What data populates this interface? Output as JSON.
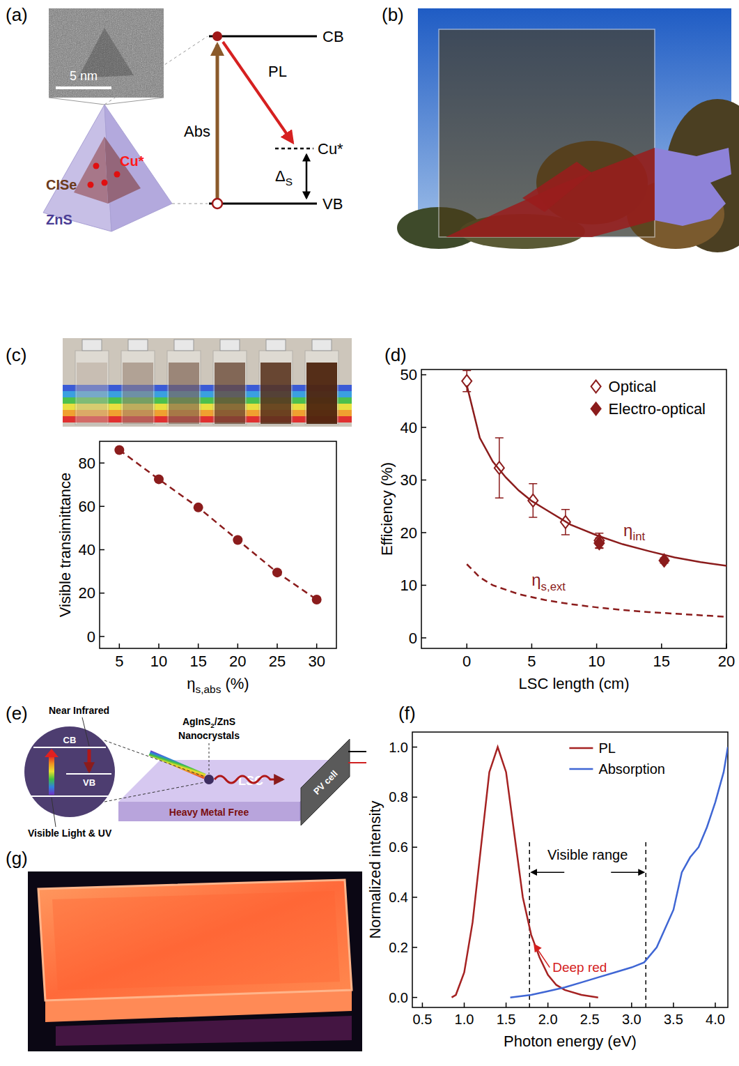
{
  "panel_labels": {
    "a": "(a)",
    "b": "(b)",
    "c": "(c)",
    "d": "(d)",
    "e": "(e)",
    "f": "(f)",
    "g": "(g)"
  },
  "diagram_a": {
    "scale_bar": "5 nm",
    "labels": {
      "core": "CISe",
      "dopant": "Cu*",
      "shell": "ZnS"
    },
    "levels": {
      "cb": "CB",
      "vb": "VB",
      "dopant": "Cu*"
    },
    "transitions": {
      "absorption": "Abs",
      "emission": "PL",
      "stokes_shift": [
        "Δ",
        "S"
      ]
    }
  },
  "diagram_e": {
    "levels": {
      "cb": "CB",
      "vb": "VB"
    },
    "emission": "Near Infrared",
    "excitation": "Visible Light & UV",
    "particle": {
      "line1": [
        "AgInS",
        "2",
        "/ZnS"
      ],
      "line2": "Nanocrystals"
    },
    "device": "LSC",
    "cell": "PV cell",
    "feature": "Heavy Metal Free"
  },
  "chart_data": [
    {
      "type": "scatter",
      "xlabel": [
        "η",
        "s,abs",
        " (%)"
      ],
      "ylabel": "Visible transimittance",
      "xlim": [
        2.5,
        32.5
      ],
      "ylim": [
        -5.5,
        90
      ],
      "xticks": [
        5,
        10,
        15,
        20,
        25,
        30
      ],
      "yticks": [
        0,
        20,
        40,
        60,
        80
      ],
      "series": [
        {
          "color": "#8b1c1c",
          "marker": "circle",
          "line_style": "dashed",
          "x": [
            5,
            10,
            15,
            20,
            25,
            30
          ],
          "values": [
            86,
            72.5,
            59.5,
            44.5,
            29.5,
            17
          ]
        }
      ]
    },
    {
      "type": "line",
      "xlabel": "LSC length (cm)",
      "ylabel": "Efficiency (%)",
      "xlim": [
        -3.5,
        20
      ],
      "ylim": [
        -2,
        51
      ],
      "xticks": [
        0,
        5,
        10,
        15,
        20
      ],
      "yticks": [
        0,
        10,
        20,
        30,
        40,
        50
      ],
      "legend": "upper right",
      "series": [
        {
          "name": "Optical",
          "type": "scatter",
          "marker": "diamond-open",
          "color": "#8b1c1c",
          "x": [
            0,
            2.5,
            5.1,
            7.6,
            10.2
          ],
          "values": [
            48.8,
            32.3,
            26.1,
            22,
            18.5
          ],
          "errors": [
            2,
            5.7,
            3.2,
            2.4,
            1.4
          ]
        },
        {
          "name": "Electro-optical",
          "type": "scatter",
          "marker": "diamond",
          "color": "#8b1c1c",
          "x": [
            10.2,
            15.2
          ],
          "values": [
            18,
            14.7
          ],
          "errors": [
            1,
            0.5
          ]
        },
        {
          "type": "line",
          "line_style": "solid",
          "color": "#8b1c1c",
          "x": [
            0,
            1,
            2,
            3,
            4,
            5,
            6,
            8,
            10,
            12,
            14,
            16,
            18,
            20
          ],
          "values": [
            48,
            38,
            33.5,
            30.5,
            28,
            26,
            24.5,
            21.5,
            19.5,
            17.8,
            16.5,
            15.3,
            14.4,
            13.7
          ]
        },
        {
          "type": "line",
          "line_style": "dashed",
          "color": "#8b1c1c",
          "x": [
            0,
            1,
            2,
            4,
            6,
            8,
            10,
            12,
            14,
            16,
            18,
            20
          ],
          "values": [
            14,
            11.5,
            10,
            8.3,
            7.2,
            6.4,
            5.8,
            5.3,
            4.9,
            4.6,
            4.3,
            4
          ]
        }
      ],
      "annotations": [
        {
          "text": [
            "η",
            "int"
          ],
          "x": 12.9,
          "y": 20.5,
          "color": "#8b1c1c"
        },
        {
          "text": [
            "η",
            "s,ext"
          ],
          "x": 6.3,
          "y": 11,
          "color": "#8b1c1c"
        }
      ]
    },
    {
      "type": "line",
      "xlabel": "Photon energy (eV)",
      "ylabel": "Normalized intensity",
      "xlim": [
        0.38,
        4.15
      ],
      "ylim": [
        -0.04,
        1.06
      ],
      "xticks": [
        0.5,
        {
          "value": 1,
          "label": "1.0"
        },
        1.5,
        {
          "value": 2,
          "label": "2.0"
        },
        2.5,
        {
          "value": 3,
          "label": "3.0"
        },
        3.5,
        {
          "value": 4,
          "label": "4.0"
        }
      ],
      "yticks": [
        {
          "value": 0,
          "label": "0.0"
        },
        0.2,
        0.4,
        0.6,
        0.8,
        {
          "value": 1,
          "label": "1.0"
        }
      ],
      "legend": "upper right",
      "series": [
        {
          "name": "PL",
          "color": "#a52222",
          "x": [
            0.85,
            0.9,
            1.0,
            1.1,
            1.2,
            1.3,
            1.4,
            1.5,
            1.6,
            1.7,
            1.8,
            1.9,
            2.0,
            2.1,
            2.2,
            2.4,
            2.6
          ],
          "values": [
            0,
            0.01,
            0.1,
            0.3,
            0.6,
            0.9,
            1,
            0.9,
            0.65,
            0.4,
            0.25,
            0.16,
            0.09,
            0.05,
            0.03,
            0.01,
            0
          ]
        },
        {
          "name": "Absorption",
          "color": "#3f66d4",
          "x": [
            1.55,
            1.8,
            2.0,
            2.2,
            2.4,
            2.6,
            2.8,
            3.0,
            3.15,
            3.3,
            3.5,
            3.6,
            3.7,
            3.8,
            3.9,
            4.0,
            4.1,
            4.15
          ],
          "values": [
            0,
            0.01,
            0.025,
            0.04,
            0.06,
            0.08,
            0.1,
            0.12,
            0.14,
            0.2,
            0.35,
            0.5,
            0.56,
            0.6,
            0.68,
            0.78,
            0.9,
            1
          ]
        }
      ],
      "visible_range": {
        "label": "Visible range",
        "x": [
          1.78,
          3.17
        ],
        "y": 0.55
      },
      "annotations": [
        {
          "text": "Deep red",
          "x": 2.38,
          "y": 0.12,
          "arrow_to": [
            1.84,
            0.21
          ],
          "color": "#d42020"
        }
      ]
    }
  ]
}
